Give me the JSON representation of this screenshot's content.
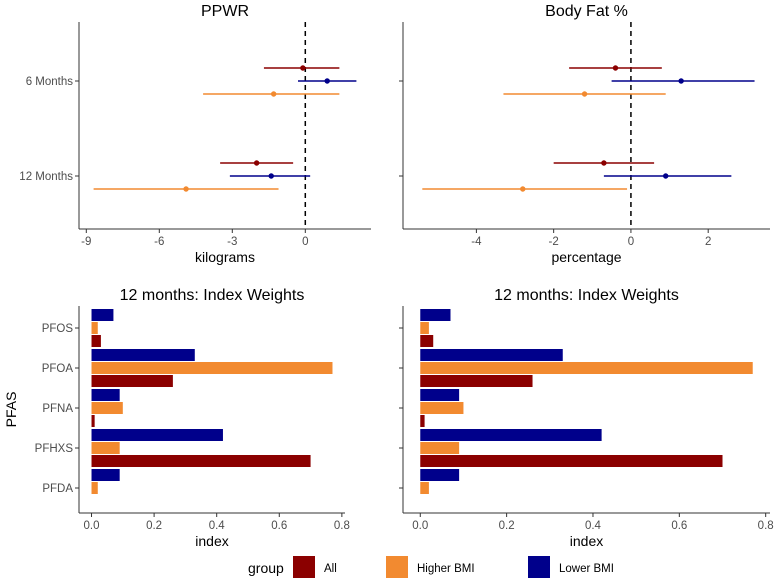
{
  "colors": {
    "All": "#8B0000",
    "Higher BMI": "#F28A30",
    "Lower BMI": "#00008B"
  },
  "chart_data": [
    {
      "type": "forest",
      "title": "PPWR",
      "xlabel": "kilograms",
      "xlim": [
        -9.3,
        2.7
      ],
      "xticks": [
        -9,
        -6,
        -3,
        0
      ],
      "categories": [
        "6 Months",
        "12 Months"
      ],
      "reference_line": 0,
      "series": [
        {
          "name": "All",
          "points": [
            {
              "category": "6 Months",
              "estimate": -0.1,
              "lower": -1.7,
              "upper": 1.4
            },
            {
              "category": "12 Months",
              "estimate": -2.0,
              "lower": -3.5,
              "upper": -0.5
            }
          ]
        },
        {
          "name": "Lower BMI",
          "points": [
            {
              "category": "6 Months",
              "estimate": 0.9,
              "lower": -0.3,
              "upper": 2.1
            },
            {
              "category": "12 Months",
              "estimate": -1.4,
              "lower": -3.1,
              "upper": 0.2
            }
          ]
        },
        {
          "name": "Higher BMI",
          "points": [
            {
              "category": "6 Months",
              "estimate": -1.3,
              "lower": -4.2,
              "upper": 1.4
            },
            {
              "category": "12 Months",
              "estimate": -4.9,
              "lower": -8.7,
              "upper": -1.1
            }
          ]
        }
      ]
    },
    {
      "type": "forest",
      "title": "Body Fat %",
      "xlabel": "percentage",
      "xlim": [
        -5.9,
        3.6
      ],
      "xticks": [
        -4,
        -2,
        0,
        2
      ],
      "categories": [
        "6 Months",
        "12 Months"
      ],
      "reference_line": 0,
      "series": [
        {
          "name": "All",
          "points": [
            {
              "category": "6 Months",
              "estimate": -0.4,
              "lower": -1.6,
              "upper": 0.8
            },
            {
              "category": "12 Months",
              "estimate": -0.7,
              "lower": -2.0,
              "upper": 0.6
            }
          ]
        },
        {
          "name": "Lower BMI",
          "points": [
            {
              "category": "6 Months",
              "estimate": 1.3,
              "lower": -0.5,
              "upper": 3.2
            },
            {
              "category": "12 Months",
              "estimate": 0.9,
              "lower": -0.7,
              "upper": 2.6
            }
          ]
        },
        {
          "name": "Higher BMI",
          "points": [
            {
              "category": "6 Months",
              "estimate": -1.2,
              "lower": -3.3,
              "upper": 0.9
            },
            {
              "category": "12 Months",
              "estimate": -2.8,
              "lower": -5.4,
              "upper": -0.1
            }
          ]
        }
      ]
    },
    {
      "type": "bar",
      "orientation": "horizontal",
      "title": "12 months: Index Weights",
      "xlabel": "index",
      "ylabel": "PFAS",
      "xlim": [
        -0.04,
        0.81
      ],
      "xticks": [
        0.0,
        0.2,
        0.4,
        0.6,
        0.8
      ],
      "xtick_labels": [
        "0.0",
        "0.2",
        "0.4",
        "0.6",
        "0.8"
      ],
      "categories": [
        "PFOS",
        "PFOA",
        "PFNA",
        "PFHXS",
        "PFDA"
      ],
      "series": [
        {
          "name": "Lower BMI",
          "values": [
            0.07,
            0.33,
            0.09,
            0.42,
            0.09
          ]
        },
        {
          "name": "Higher BMI",
          "values": [
            0.02,
            0.77,
            0.1,
            0.09,
            0.02
          ]
        },
        {
          "name": "All",
          "values": [
            0.03,
            0.26,
            0.01,
            0.7,
            0.0
          ]
        }
      ]
    },
    {
      "type": "bar",
      "orientation": "horizontal",
      "title": "12 months: Index Weights",
      "xlabel": "index",
      "ylabel": "",
      "xlim": [
        -0.04,
        0.81
      ],
      "xticks": [
        0.0,
        0.2,
        0.4,
        0.6,
        0.8
      ],
      "xtick_labels": [
        "0.0",
        "0.2",
        "0.4",
        "0.6",
        "0.8"
      ],
      "categories": [
        "PFOS",
        "PFOA",
        "PFNA",
        "PFHXS",
        "PFDA"
      ],
      "series": [
        {
          "name": "Lower BMI",
          "values": [
            0.07,
            0.33,
            0.09,
            0.42,
            0.09
          ]
        },
        {
          "name": "Higher BMI",
          "values": [
            0.02,
            0.77,
            0.1,
            0.09,
            0.02
          ]
        },
        {
          "name": "All",
          "values": [
            0.03,
            0.26,
            0.01,
            0.7,
            0.0
          ]
        }
      ]
    }
  ],
  "legend": {
    "title": "group",
    "items": [
      {
        "label": "All",
        "key": "All"
      },
      {
        "label": "Higher BMI",
        "key": "Higher BMI"
      },
      {
        "label": "Lower BMI",
        "key": "Lower BMI"
      }
    ]
  }
}
